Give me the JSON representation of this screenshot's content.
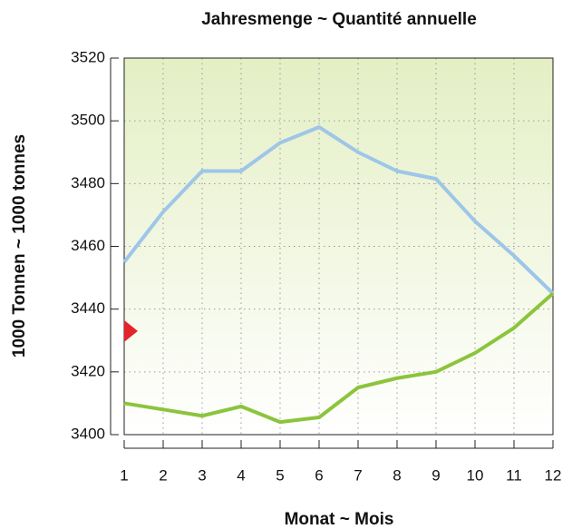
{
  "chart_data": {
    "type": "line",
    "title": "Jahresmenge ~ Quantité annuelle",
    "xlabel": "Monat ~ Mois",
    "ylabel": "1000 Tonnen ~ 1000 tonnes",
    "x": [
      1,
      2,
      3,
      4,
      5,
      6,
      7,
      8,
      9,
      10,
      11,
      12
    ],
    "series": [
      {
        "color": "#9dc6e8",
        "values": [
          3455,
          3471,
          3484,
          3484,
          3493,
          3498,
          3490,
          3484,
          3481.5,
          3468,
          3457,
          3445
        ]
      },
      {
        "color": "#8cc43c",
        "values": [
          3410,
          3408,
          3406,
          3409,
          3404,
          3405.5,
          3415,
          3418,
          3420,
          3426,
          3434,
          3445
        ]
      }
    ],
    "marker": {
      "x": 1,
      "y": 3433,
      "color": "#e3242b"
    },
    "xlim": [
      1,
      12
    ],
    "xticks": [
      1,
      2,
      3,
      4,
      5,
      6,
      7,
      8,
      9,
      10,
      11,
      12
    ],
    "ylim": [
      3400,
      3520
    ],
    "yticks": [
      3400,
      3420,
      3440,
      3460,
      3480,
      3500,
      3520
    ],
    "grid": true
  }
}
